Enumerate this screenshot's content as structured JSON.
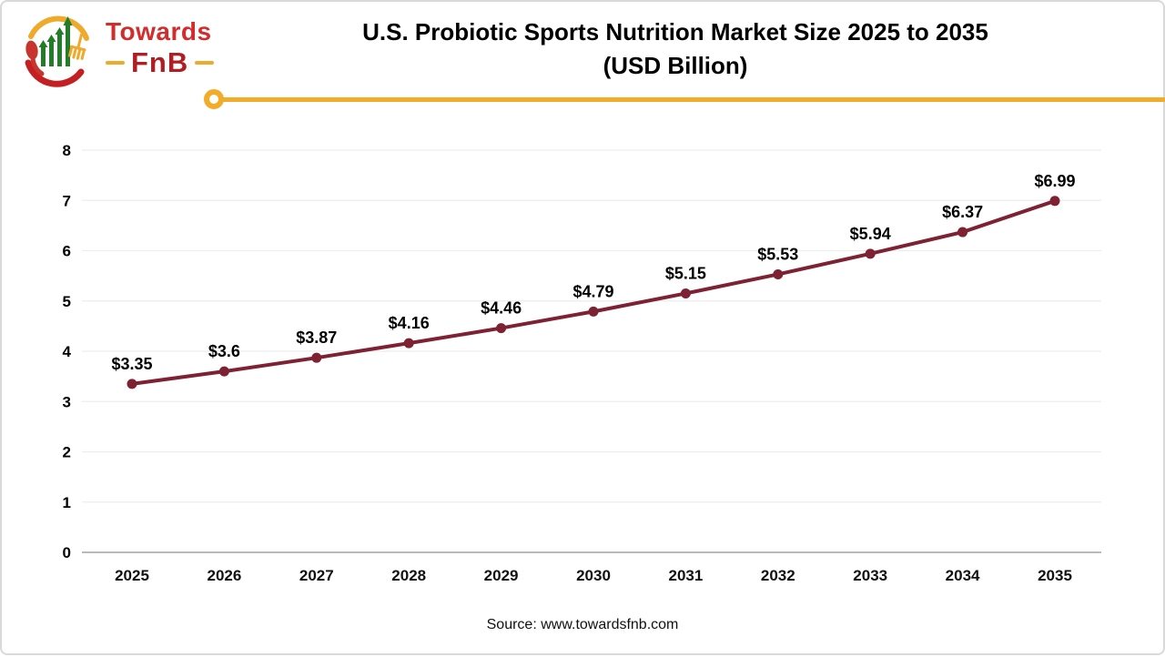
{
  "logo": {
    "brand_top": "Towards",
    "brand_bottom": "FnB"
  },
  "header": {
    "title_line1": "U.S. Probiotic Sports Nutrition Market Size 2025 to 2035",
    "title_line2": "(USD Billion)"
  },
  "footer": {
    "source": "Source: www.towardsfnb.com"
  },
  "accent": {
    "divider_yellow": "#f2ac29"
  },
  "chart_data": {
    "type": "line",
    "title": "U.S. Probiotic Sports Nutrition Market Size 2025 to 2035 (USD Billion)",
    "categories": [
      "2025",
      "2026",
      "2027",
      "2028",
      "2029",
      "2030",
      "2031",
      "2032",
      "2033",
      "2034",
      "2035"
    ],
    "values": [
      3.35,
      3.6,
      3.87,
      4.16,
      4.46,
      4.79,
      5.15,
      5.53,
      5.94,
      6.37,
      6.99
    ],
    "point_labels": [
      "$3.35",
      "$3.6",
      "$3.87",
      "$4.16",
      "$4.46",
      "$4.79",
      "$5.15",
      "$5.53",
      "$5.94",
      "$6.37",
      "$6.99"
    ],
    "xlabel": "",
    "ylabel": "",
    "ylim": [
      0,
      8
    ],
    "yticks": [
      0,
      1,
      2,
      3,
      4,
      5,
      6,
      7,
      8
    ],
    "grid": true,
    "legend": "none",
    "line_color": "#7d2133",
    "marker": "circle",
    "grid_color": "#ededed",
    "axis_color": "#b9b9b9"
  }
}
